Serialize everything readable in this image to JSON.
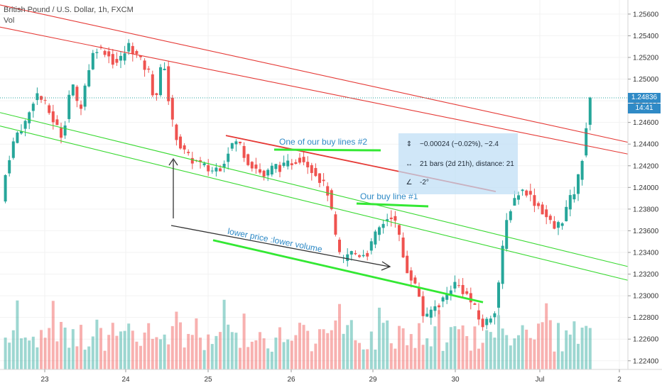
{
  "header": {
    "symbol": "British Pound / U.S. Dollar, 1h, FXCM",
    "indicator": "Vol"
  },
  "current_price": {
    "value": "1.24836",
    "countdown": "14:41"
  },
  "annotations": {
    "buy_line_2": "One of our buy lines #2",
    "buy_line_1": "Our buy line #1",
    "lower_price": "lower price  :lower volume"
  },
  "measure": {
    "price_change": "−0.00024 (−0.02%), −2.4",
    "bars": "21 bars (2d 21h), distance: 21",
    "angle": "-2°"
  },
  "colors": {
    "up": "#26a69a",
    "down": "#ef5350",
    "trend_red": "#e53935",
    "channel_green": "#38d930",
    "buy_line": "#33e833",
    "annotation_text": "#2f8ac6",
    "arrow": "#333333"
  },
  "chart_data": {
    "type": "candlestick",
    "title": "British Pound / U.S. Dollar, 1h, FXCM",
    "x_ticks": [
      "23",
      "24",
      "25",
      "26",
      "29",
      "30",
      "Jul",
      "2"
    ],
    "y_ticks": [
      "1.25600",
      "1.25400",
      "1.25200",
      "1.25000",
      "1.24800",
      "1.24600",
      "1.24400",
      "1.24200",
      "1.24000",
      "1.23800",
      "1.23600",
      "1.23400",
      "1.23200",
      "1.23000",
      "1.22800",
      "1.22600",
      "1.22400"
    ],
    "ylim": [
      1.2232,
      1.2573
    ],
    "price_path": [
      [
        0,
        1.2378
      ],
      [
        10,
        1.2422
      ],
      [
        22,
        1.2448
      ],
      [
        38,
        1.2462
      ],
      [
        50,
        1.2488
      ],
      [
        62,
        1.2478
      ],
      [
        75,
        1.2462
      ],
      [
        88,
        1.2446
      ],
      [
        100,
        1.2498
      ],
      [
        112,
        1.247
      ],
      [
        124,
        1.2508
      ],
      [
        134,
        1.253
      ],
      [
        148,
        1.2526
      ],
      [
        162,
        1.2514
      ],
      [
        172,
        1.252
      ],
      [
        182,
        1.2532
      ],
      [
        196,
        1.2518
      ],
      [
        210,
        1.2505
      ],
      [
        218,
        1.2478
      ],
      [
        230,
        1.2522
      ],
      [
        240,
        1.2465
      ],
      [
        252,
        1.244
      ],
      [
        264,
        1.2428
      ],
      [
        280,
        1.2422
      ],
      [
        296,
        1.2415
      ],
      [
        312,
        1.242
      ],
      [
        325,
        1.244
      ],
      [
        336,
        1.2442
      ],
      [
        348,
        1.2425
      ],
      [
        360,
        1.2418
      ],
      [
        372,
        1.241
      ],
      [
        386,
        1.242
      ],
      [
        398,
        1.2418
      ],
      [
        412,
        1.2424
      ],
      [
        424,
        1.2428
      ],
      [
        436,
        1.242
      ],
      [
        448,
        1.241
      ],
      [
        462,
        1.2395
      ],
      [
        472,
        1.2355
      ],
      [
        480,
        1.233
      ],
      [
        492,
        1.234
      ],
      [
        505,
        1.2338
      ],
      [
        518,
        1.234
      ],
      [
        530,
        1.2358
      ],
      [
        542,
        1.237
      ],
      [
        552,
        1.2375
      ],
      [
        560,
        1.236
      ],
      [
        570,
        1.2328
      ],
      [
        580,
        1.2316
      ],
      [
        590,
        1.23
      ],
      [
        598,
        1.2275
      ],
      [
        608,
        1.2288
      ],
      [
        618,
        1.2293
      ],
      [
        628,
        1.23
      ],
      [
        638,
        1.2312
      ],
      [
        648,
        1.2308
      ],
      [
        658,
        1.23
      ],
      [
        668,
        1.2288
      ],
      [
        678,
        1.2272
      ],
      [
        688,
        1.2278
      ],
      [
        698,
        1.229
      ],
      [
        706,
        1.2335
      ],
      [
        714,
        1.2372
      ],
      [
        722,
        1.2388
      ],
      [
        730,
        1.2395
      ],
      [
        740,
        1.2398
      ],
      [
        750,
        1.2388
      ],
      [
        760,
        1.2382
      ],
      [
        770,
        1.2372
      ],
      [
        780,
        1.2362
      ],
      [
        790,
        1.2368
      ],
      [
        800,
        1.2385
      ],
      [
        810,
        1.2398
      ],
      [
        818,
        1.242
      ],
      [
        826,
        1.246
      ],
      [
        832,
        1.2484
      ]
    ],
    "lines": [
      {
        "name": "red-channel-upper",
        "from": [
          0,
          1.25685
        ],
        "to": [
          884,
          1.24417
        ]
      },
      {
        "name": "red-channel-lower",
        "from": [
          0,
          1.2548
        ],
        "to": [
          884,
          1.24308
        ]
      },
      {
        "name": "red-buy-line-2",
        "from": [
          318,
          1.24479
        ],
        "to": [
          698,
          1.23962
        ]
      },
      {
        "name": "green-channel-upper",
        "from": [
          0,
          1.24691
        ],
        "to": [
          884,
          1.2327
        ]
      },
      {
        "name": "green-channel-lower",
        "from": [
          0,
          1.24567
        ],
        "to": [
          884,
          1.23143
        ]
      },
      {
        "name": "green-trend-lower",
        "from": [
          300,
          1.23513
        ],
        "to": [
          680,
          1.2294
        ]
      }
    ]
  }
}
